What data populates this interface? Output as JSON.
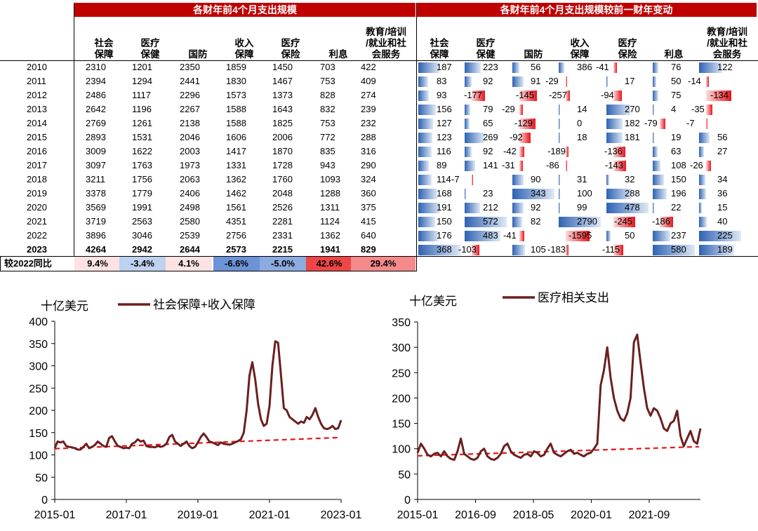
{
  "table": {
    "title_left": "各财年前4个月支出规模",
    "title_right": "各财年前4个月支出规模较前一财年变动",
    "columns": [
      [
        "社会",
        "保障"
      ],
      [
        "医疗",
        "保健"
      ],
      [
        "国防"
      ],
      [
        "收入",
        "保障"
      ],
      [
        "医疗",
        "保险"
      ],
      [
        "利息"
      ],
      [
        "教育/培训",
        "/就业和社",
        "会服务"
      ]
    ],
    "years": [
      "2010",
      "2011",
      "2012",
      "2013",
      "2014",
      "2015",
      "2016",
      "2017",
      "2018",
      "2019",
      "2020",
      "2021",
      "2022",
      "2023"
    ],
    "values": [
      [
        2310,
        1201,
        2350,
        1859,
        1450,
        703,
        422
      ],
      [
        2394,
        1294,
        2441,
        1830,
        1467,
        753,
        409
      ],
      [
        2486,
        1117,
        2296,
        1573,
        1373,
        828,
        274
      ],
      [
        2642,
        1196,
        2267,
        1588,
        1643,
        832,
        239
      ],
      [
        2769,
        1261,
        2138,
        1588,
        1825,
        753,
        232
      ],
      [
        2893,
        1531,
        2046,
        1606,
        2006,
        772,
        288
      ],
      [
        3009,
        1622,
        2003,
        1417,
        1870,
        835,
        316
      ],
      [
        3097,
        1763,
        1973,
        1331,
        1728,
        943,
        290
      ],
      [
        3211,
        1756,
        2063,
        1362,
        1760,
        1093,
        324
      ],
      [
        3378,
        1779,
        2406,
        1462,
        2048,
        1288,
        360
      ],
      [
        3569,
        1991,
        2498,
        1561,
        2526,
        1311,
        375
      ],
      [
        3719,
        2563,
        2580,
        4351,
        2281,
        1124,
        415
      ],
      [
        3896,
        3046,
        2539,
        2756,
        2331,
        1362,
        640
      ],
      [
        4264,
        2942,
        2644,
        2573,
        2215,
        1941,
        829
      ]
    ],
    "changes": [
      [
        187,
        223,
        56,
        386,
        -41,
        76,
        122
      ],
      [
        83,
        92,
        91,
        -29,
        17,
        50,
        -14
      ],
      [
        93,
        -177,
        -145,
        -257,
        -94,
        75,
        -134
      ],
      [
        156,
        79,
        -29,
        14,
        270,
        4,
        -35
      ],
      [
        127,
        65,
        -129,
        0,
        182,
        -79,
        -7
      ],
      [
        123,
        269,
        -92,
        18,
        181,
        19,
        56
      ],
      [
        116,
        92,
        -42,
        -189,
        -136,
        63,
        27
      ],
      [
        89,
        141,
        -31,
        -86,
        -143,
        108,
        -26
      ],
      [
        114,
        -7,
        90,
        31,
        32,
        150,
        34
      ],
      [
        168,
        23,
        343,
        100,
        288,
        196,
        36
      ],
      [
        191,
        212,
        92,
        99,
        478,
        22,
        15
      ],
      [
        150,
        572,
        82,
        2790,
        -245,
        -186,
        40
      ],
      [
        176,
        483,
        -41,
        -1595,
        50,
        237,
        225
      ],
      [
        368,
        -103,
        105,
        -183,
        -115,
        580,
        189
      ]
    ],
    "yoy_label": "较2022同比",
    "yoy_values": [
      "9.4%",
      "-3.4%",
      "4.1%",
      "-6.6%",
      "-5.0%",
      "42.6%",
      "29.4%"
    ],
    "yoy_colors": [
      "#fde2e2",
      "#bdd2ee",
      "#fde2e2",
      "#6b93d6",
      "#8cabe0",
      "#ee4646",
      "#f58a8a"
    ]
  },
  "colors": {
    "header_red": "#c00000",
    "line": "#6b1f1f",
    "trend": "#e8141c",
    "bar_pos": "#2e62b3",
    "bar_neg": "#e8141c"
  },
  "chart_data": [
    {
      "type": "line",
      "ylabel": "十亿美元",
      "series": [
        {
          "name": "社会保障+收入保障"
        }
      ],
      "x_ticks": [
        "2015-01",
        "2017-01",
        "2019-01",
        "2021-01",
        "2023-01"
      ],
      "x_range": [
        "2015-01",
        "2023-01"
      ],
      "ylim": [
        0,
        400
      ],
      "y_ticks": [
        0,
        50,
        100,
        150,
        200,
        250,
        300,
        350,
        400
      ],
      "monthly_values": [
        115,
        130,
        128,
        130,
        120,
        118,
        117,
        115,
        112,
        112,
        118,
        125,
        115,
        118,
        122,
        130,
        125,
        120,
        118,
        138,
        142,
        130,
        120,
        118,
        115,
        116,
        115,
        125,
        128,
        135,
        130,
        132,
        120,
        118,
        118,
        117,
        120,
        118,
        120,
        125,
        140,
        145,
        130,
        125,
        120,
        125,
        130,
        120,
        115,
        118,
        128,
        140,
        148,
        140,
        130,
        128,
        125,
        122,
        128,
        125,
        124,
        123,
        125,
        128,
        131,
        135,
        150,
        200,
        278,
        308,
        270,
        215,
        180,
        165,
        170,
        210,
        300,
        355,
        352,
        280,
        205,
        200,
        185,
        180,
        175,
        170,
        175,
        172,
        185,
        180,
        190,
        205,
        185,
        170,
        160,
        158,
        160,
        165,
        158,
        160,
        178
      ],
      "trend_start": 114,
      "trend_end": 139
    },
    {
      "type": "line",
      "ylabel": "十亿美元",
      "series": [
        {
          "name": "医疗相关支出"
        }
      ],
      "x_ticks": [
        "2015-01",
        "2016-09",
        "2018-05",
        "2020-01",
        "2021-09"
      ],
      "x_range": [
        "2015-01",
        "2022-12"
      ],
      "ylim": [
        0,
        350
      ],
      "y_ticks": [
        0,
        50,
        100,
        150,
        200,
        250,
        300,
        350
      ],
      "monthly_values": [
        92,
        110,
        100,
        88,
        85,
        90,
        92,
        85,
        95,
        85,
        80,
        78,
        95,
        120,
        90,
        85,
        80,
        78,
        82,
        95,
        100,
        85,
        80,
        78,
        82,
        90,
        105,
        110,
        95,
        88,
        85,
        82,
        88,
        90,
        85,
        95,
        92,
        85,
        88,
        100,
        110,
        92,
        88,
        85,
        90,
        95,
        98,
        90,
        92,
        88,
        85,
        90,
        92,
        100,
        110,
        225,
        255,
        300,
        240,
        200,
        175,
        160,
        155,
        170,
        200,
        310,
        325,
        270,
        220,
        180,
        165,
        180,
        175,
        160,
        140,
        135,
        150,
        155,
        175,
        125,
        105,
        120,
        135,
        115,
        110,
        140
      ],
      "trend_start": 86,
      "trend_end": 104
    }
  ]
}
